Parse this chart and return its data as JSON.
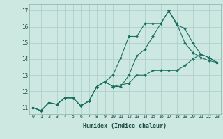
{
  "title": "",
  "xlabel": "Humidex (Indice chaleur)",
  "ylabel": "",
  "bg_color": "#cce8e0",
  "grid_color": "#aacccc",
  "line_color": "#1a7060",
  "xlim": [
    -0.5,
    23.5
  ],
  "ylim": [
    10.6,
    17.4
  ],
  "xticks": [
    0,
    1,
    2,
    3,
    4,
    5,
    6,
    7,
    8,
    9,
    10,
    11,
    12,
    13,
    14,
    15,
    16,
    17,
    18,
    19,
    20,
    21,
    22,
    23
  ],
  "yticks": [
    11,
    12,
    13,
    14,
    15,
    16,
    17
  ],
  "series": [
    [
      0,
      1,
      2,
      3,
      4,
      5,
      6,
      7,
      8,
      9,
      10,
      11,
      12,
      13,
      14,
      15,
      16,
      17,
      18,
      19,
      20,
      21,
      22,
      23
    ],
    [
      11.0,
      10.8,
      11.3,
      11.2,
      11.6,
      11.6,
      11.1,
      11.4,
      12.3,
      12.6,
      12.3,
      12.3,
      13.0,
      14.2,
      14.6,
      15.4,
      16.2,
      17.0,
      16.2,
      15.0,
      14.4,
      14.1,
      13.9,
      13.8
    ],
    [
      11.0,
      10.8,
      11.3,
      11.2,
      11.6,
      11.6,
      11.1,
      11.4,
      12.3,
      12.6,
      13.0,
      14.1,
      15.4,
      15.4,
      16.2,
      16.2,
      16.2,
      17.0,
      16.1,
      15.9,
      15.0,
      14.3,
      14.1,
      13.8
    ],
    [
      11.0,
      10.8,
      11.3,
      11.2,
      11.6,
      11.6,
      11.1,
      11.4,
      12.3,
      12.6,
      12.3,
      12.4,
      12.5,
      13.0,
      13.0,
      13.3,
      13.3,
      13.3,
      13.3,
      13.6,
      14.0,
      14.3,
      14.1,
      13.8
    ]
  ]
}
